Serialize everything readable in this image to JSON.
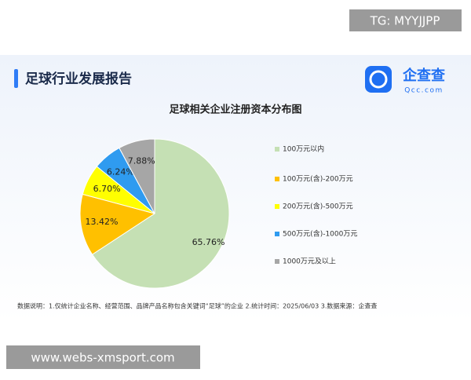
{
  "watermark_top": "TG: MYYJJPP",
  "header": {
    "title": "足球行业发展报告"
  },
  "logo": {
    "name": "企查查",
    "domain": "Qcc.com"
  },
  "chart_data": {
    "type": "pie",
    "title": "足球相关企业注册资本分布图",
    "categories": [
      "100万元以内",
      "100万元(含)-200万元",
      "200万元(含)-500万元",
      "500万元(含)-1000万元",
      "1000万元及以上"
    ],
    "values": [
      65.76,
      13.42,
      6.7,
      6.24,
      7.88
    ],
    "value_labels": [
      "65.76%",
      "13.42%",
      "6.70%",
      "6.24%",
      "7.88%"
    ],
    "colors": [
      "#c5e0b4",
      "#ffc000",
      "#ffff00",
      "#2f9bf0",
      "#a6a6a6"
    ]
  },
  "footnote": "数据说明：1.仅统计企业名称、经营范围、品牌产品名称包含关键词“足球”的企业   2.统计时间：2025/06/03   3.数据来源：企查查",
  "watermark_bottom": "www.webs-xmsport.com"
}
